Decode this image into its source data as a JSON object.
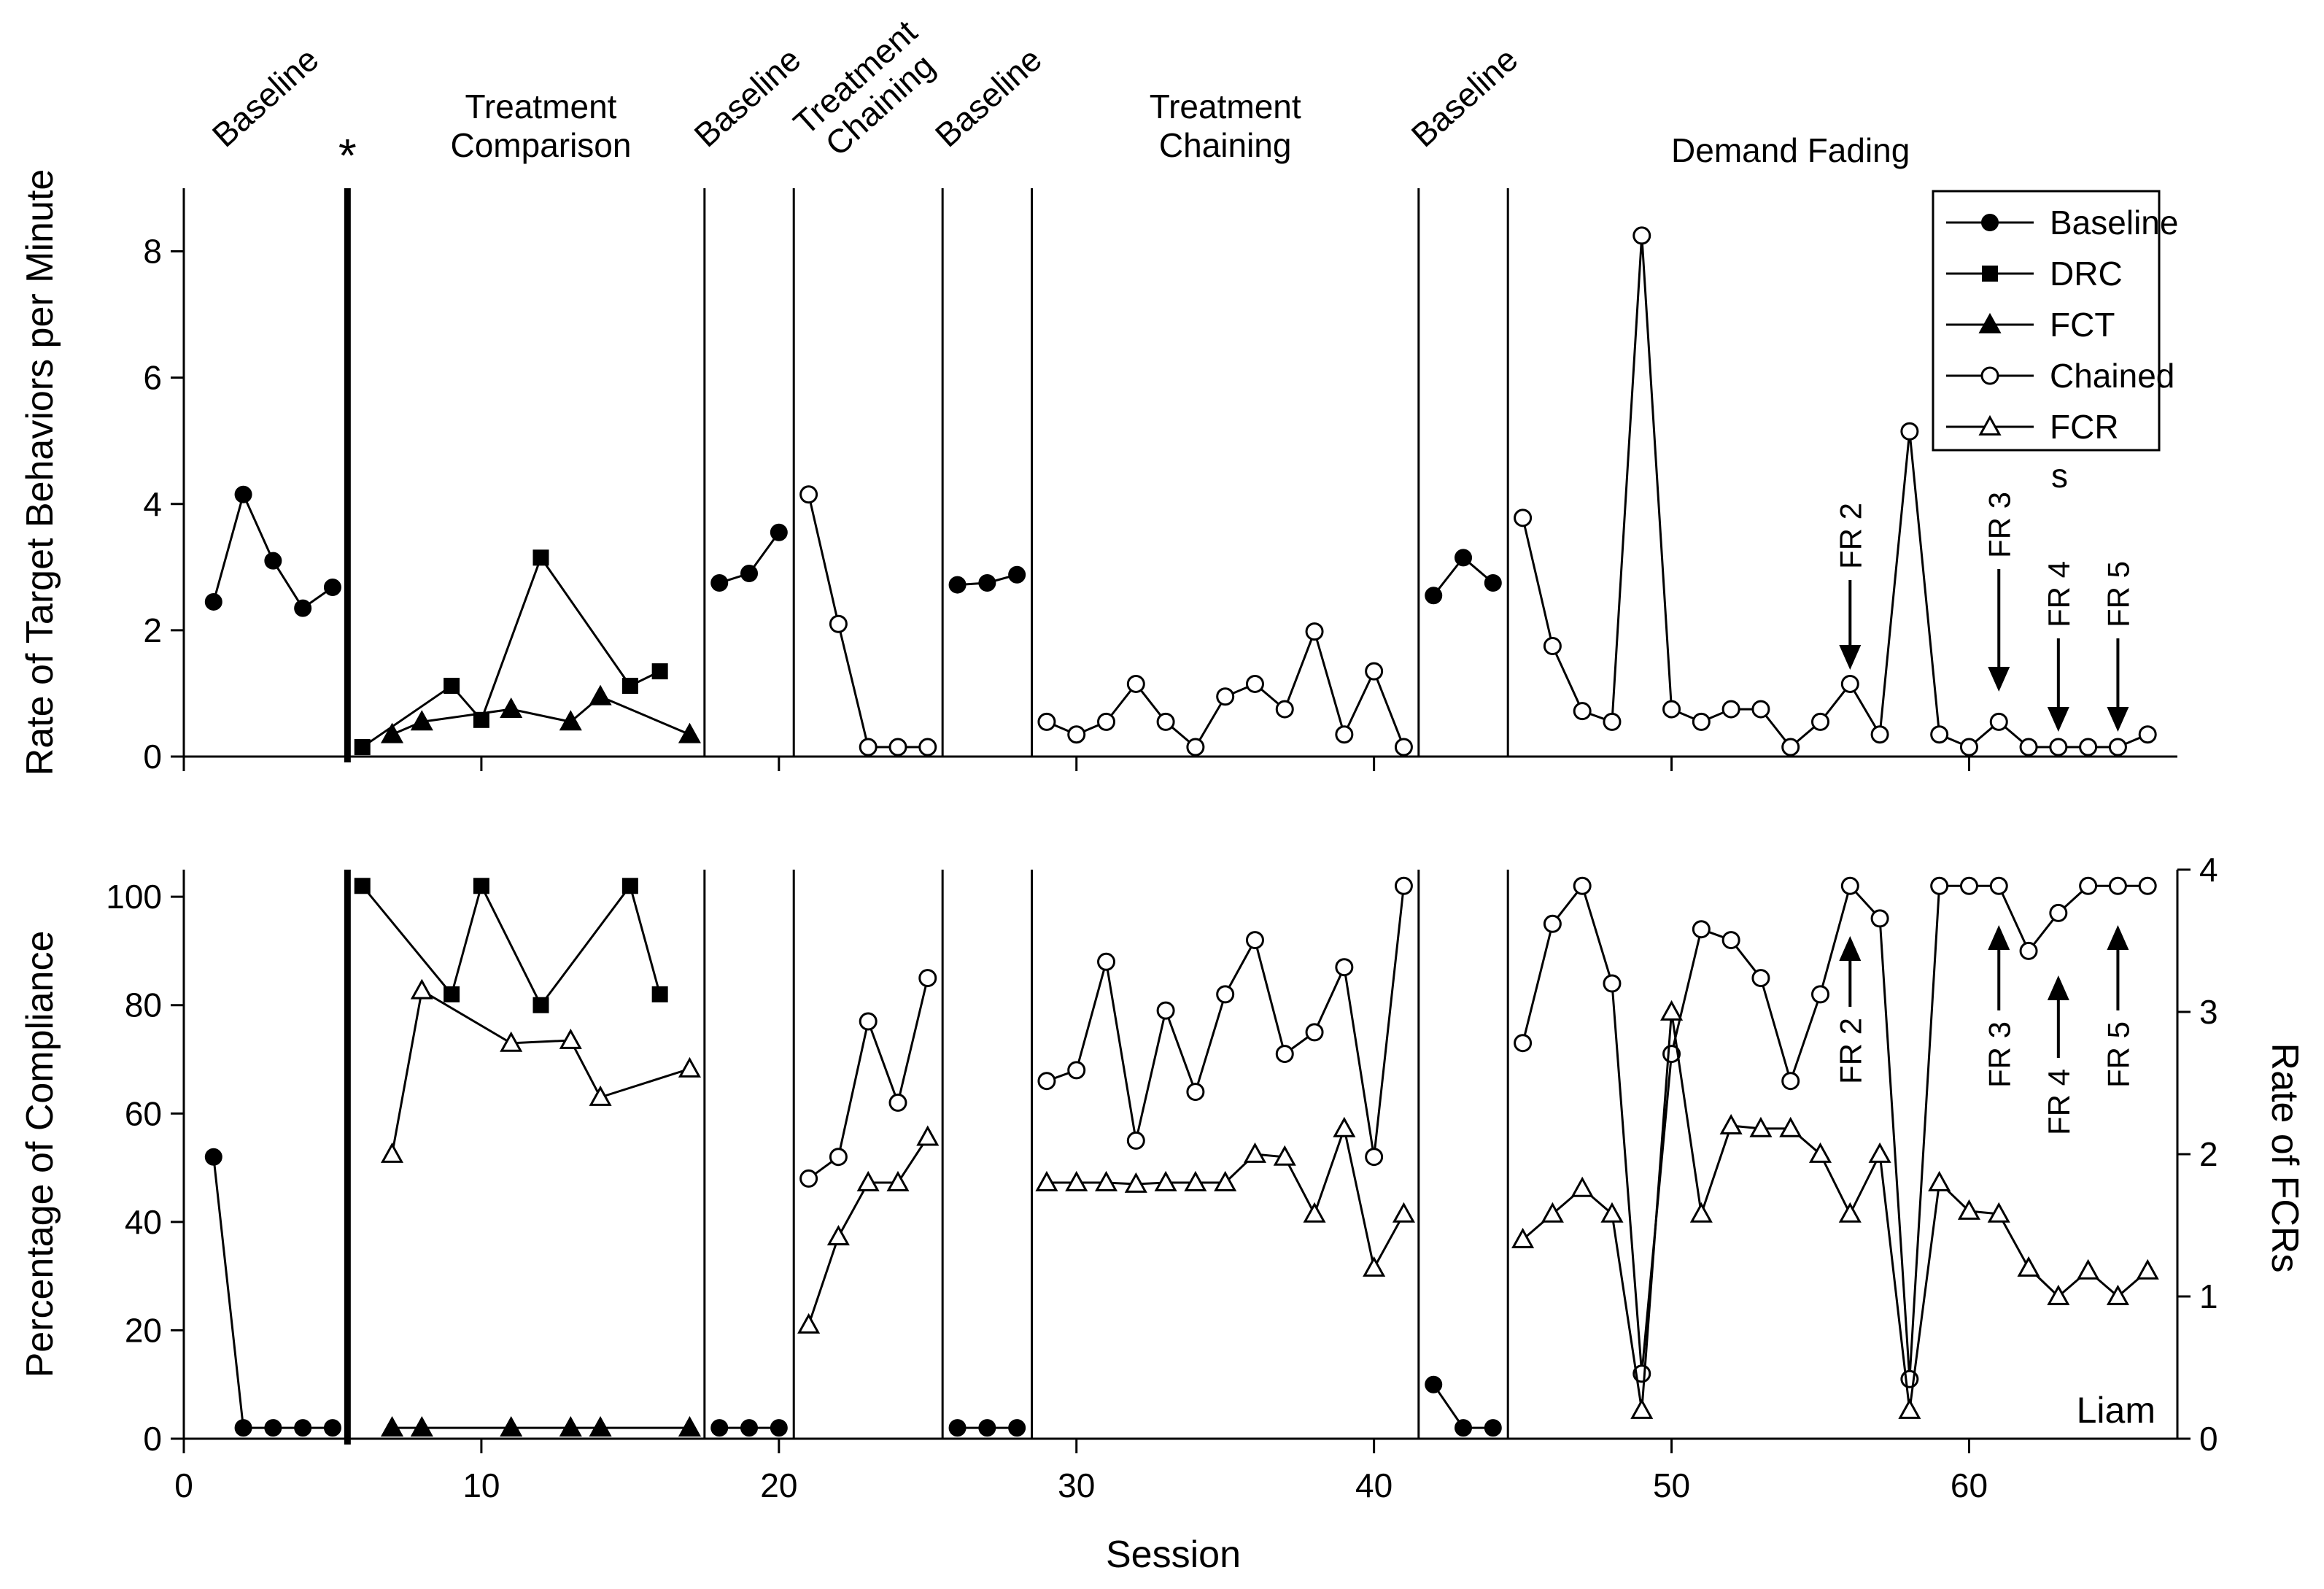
{
  "chart_data": [
    {
      "type": "line",
      "ylabel": "Rate of Target Behaviors per Minute",
      "xlim": [
        0,
        67
      ],
      "ylim": [
        0,
        9
      ],
      "yticks": [
        0,
        2,
        4,
        6,
        8
      ],
      "phase_changes": [
        5.5,
        17.5,
        20.5,
        25.5,
        28.5,
        41.5,
        44.5
      ],
      "phase_labels": [
        {
          "text": "Baseline",
          "x": 3,
          "rotated": true
        },
        {
          "text": "*",
          "x": 5.5,
          "rotated": false
        },
        {
          "text": "Treatment\nComparison",
          "x": 12,
          "rotated": false
        },
        {
          "text": "Baseline",
          "x": 19.2,
          "rotated": true
        },
        {
          "text": "Treatment\nChaining",
          "x": 23.2,
          "rotated": true
        },
        {
          "text": "Baseline",
          "x": 27.3,
          "rotated": true
        },
        {
          "text": "Treatment\nChaining",
          "x": 35,
          "rotated": false
        },
        {
          "text": "Baseline",
          "x": 43.3,
          "rotated": true
        },
        {
          "text": "Demand Fading",
          "x": 54,
          "rotated": false
        }
      ],
      "series": [
        {
          "name": "Baseline",
          "marker": "filled-circle",
          "segments": [
            [
              [
                1,
                2.45
              ],
              [
                2,
                4.15
              ],
              [
                3,
                3.1
              ],
              [
                4,
                2.35
              ],
              [
                5,
                2.68
              ]
            ],
            [
              [
                18,
                2.75
              ],
              [
                19,
                2.9
              ],
              [
                20,
                3.55
              ]
            ],
            [
              [
                26,
                2.72
              ],
              [
                27,
                2.75
              ],
              [
                28,
                2.88
              ]
            ],
            [
              [
                42,
                2.55
              ],
              [
                43,
                3.15
              ],
              [
                44,
                2.75
              ]
            ]
          ]
        },
        {
          "name": "DRC",
          "marker": "filled-square",
          "segments": [
            [
              [
                6,
                0.15
              ],
              [
                9,
                1.12
              ],
              [
                10,
                0.58
              ],
              [
                12,
                3.15
              ],
              [
                15,
                1.12
              ],
              [
                16,
                1.35
              ]
            ]
          ]
        },
        {
          "name": "FCT",
          "marker": "filled-triangle",
          "segments": [
            [
              [
                7,
                0.35
              ],
              [
                8,
                0.55
              ],
              [
                11,
                0.75
              ],
              [
                13,
                0.55
              ],
              [
                14,
                0.95
              ],
              [
                17,
                0.35
              ]
            ]
          ]
        },
        {
          "name": "Chained",
          "marker": "open-circle",
          "segments": [
            [
              [
                21,
                4.15
              ],
              [
                22,
                2.1
              ],
              [
                23,
                0.15
              ],
              [
                24,
                0.15
              ],
              [
                25,
                0.15
              ]
            ],
            [
              [
                29,
                0.55
              ],
              [
                30,
                0.35
              ],
              [
                31,
                0.55
              ],
              [
                32,
                1.15
              ],
              [
                33,
                0.55
              ],
              [
                34,
                0.15
              ],
              [
                35,
                0.95
              ],
              [
                36,
                1.15
              ],
              [
                37,
                0.75
              ],
              [
                38,
                1.98
              ],
              [
                39,
                0.35
              ],
              [
                40,
                1.35
              ],
              [
                41,
                0.15
              ]
            ],
            [
              [
                45,
                3.78
              ],
              [
                46,
                1.75
              ],
              [
                47,
                0.72
              ],
              [
                48,
                0.55
              ],
              [
                49,
                8.25
              ],
              [
                50,
                0.75
              ],
              [
                51,
                0.55
              ],
              [
                52,
                0.75
              ],
              [
                53,
                0.75
              ],
              [
                54,
                0.15
              ],
              [
                55,
                0.55
              ],
              [
                56,
                1.15
              ],
              [
                57,
                0.35
              ],
              [
                58,
                5.15
              ],
              [
                59,
                0.35
              ],
              [
                60,
                0.15
              ],
              [
                61,
                0.55
              ],
              [
                62,
                0.15
              ],
              [
                63,
                0.15
              ],
              [
                64,
                0.15
              ],
              [
                65,
                0.15
              ],
              [
                66,
                0.35
              ]
            ]
          ]
        }
      ],
      "legend": {
        "position": "top-right",
        "entries": [
          {
            "label": "Baseline",
            "marker": "filled-circle"
          },
          {
            "label": "DRC",
            "marker": "filled-square"
          },
          {
            "label": "FCT",
            "marker": "filled-triangle"
          },
          {
            "label": "Chained",
            "marker": "open-circle"
          },
          {
            "label": "FCR",
            "marker": "open-triangle"
          }
        ],
        "extra_text": "s"
      },
      "annotations": [
        {
          "text": "FR 2",
          "x": 56
        },
        {
          "text": "FR 3",
          "x": 61
        },
        {
          "text": "FR 4",
          "x": 63
        },
        {
          "text": "FR 5",
          "x": 65
        }
      ]
    },
    {
      "type": "line",
      "xlabel": "Session",
      "ylabel": "Percentage of Compliance",
      "ylabel_right": "Rate of FCRs",
      "xlim": [
        0,
        67
      ],
      "ylim": [
        0,
        105
      ],
      "ylim_right": [
        0,
        4
      ],
      "xticks": [
        0,
        10,
        20,
        30,
        40,
        50,
        60
      ],
      "yticks": [
        0,
        20,
        40,
        60,
        80,
        100
      ],
      "yticks_right": [
        0,
        1,
        2,
        3,
        4
      ],
      "phase_changes": [
        5.5,
        17.5,
        20.5,
        25.5,
        28.5,
        41.5,
        44.5
      ],
      "participant": "Liam",
      "series": [
        {
          "name": "Baseline",
          "axis": "left",
          "marker": "filled-circle",
          "segments": [
            [
              [
                1,
                52
              ],
              [
                2,
                2
              ],
              [
                3,
                2
              ],
              [
                4,
                2
              ],
              [
                5,
                2
              ]
            ],
            [
              [
                18,
                2
              ],
              [
                19,
                2
              ],
              [
                20,
                2
              ]
            ],
            [
              [
                26,
                2
              ],
              [
                27,
                2
              ],
              [
                28,
                2
              ]
            ],
            [
              [
                42,
                10
              ],
              [
                43,
                2
              ],
              [
                44,
                2
              ]
            ]
          ]
        },
        {
          "name": "DRC",
          "axis": "left",
          "marker": "filled-square",
          "segments": [
            [
              [
                6,
                102
              ],
              [
                9,
                82
              ],
              [
                10,
                102
              ],
              [
                12,
                80
              ],
              [
                15,
                102
              ],
              [
                16,
                82
              ]
            ]
          ]
        },
        {
          "name": "FCT",
          "axis": "left",
          "marker": "filled-triangle",
          "segments": [
            [
              [
                7,
                2
              ],
              [
                8,
                2
              ],
              [
                11,
                2
              ],
              [
                13,
                2
              ],
              [
                14,
                2
              ],
              [
                17,
                2
              ]
            ]
          ]
        },
        {
          "name": "Chained",
          "axis": "left",
          "marker": "open-circle",
          "segments": [
            [
              [
                21,
                48
              ],
              [
                22,
                52
              ],
              [
                23,
                77
              ],
              [
                24,
                62
              ],
              [
                25,
                85
              ]
            ],
            [
              [
                29,
                66
              ],
              [
                30,
                68
              ],
              [
                31,
                88
              ],
              [
                32,
                55
              ],
              [
                33,
                79
              ],
              [
                34,
                64
              ],
              [
                35,
                82
              ],
              [
                36,
                92
              ],
              [
                37,
                71
              ],
              [
                38,
                75
              ],
              [
                39,
                87
              ],
              [
                40,
                52
              ],
              [
                41,
                102
              ]
            ],
            [
              [
                45,
                73
              ],
              [
                46,
                95
              ],
              [
                47,
                102
              ],
              [
                48,
                84
              ],
              [
                49,
                12
              ],
              [
                50,
                71
              ],
              [
                51,
                94
              ],
              [
                52,
                92
              ],
              [
                53,
                85
              ],
              [
                54,
                66
              ],
              [
                55,
                82
              ],
              [
                56,
                102
              ],
              [
                57,
                96
              ],
              [
                58,
                11
              ],
              [
                59,
                102
              ],
              [
                60,
                102
              ],
              [
                61,
                102
              ],
              [
                62,
                90
              ],
              [
                63,
                97
              ],
              [
                64,
                102
              ],
              [
                65,
                102
              ],
              [
                66,
                102
              ]
            ]
          ]
        },
        {
          "name": "FCR",
          "axis": "right",
          "marker": "open-triangle",
          "segments": [
            [
              [
                7,
                2.0
              ],
              [
                8,
                3.15
              ],
              [
                11,
                2.78
              ],
              [
                13,
                2.8
              ],
              [
                14,
                2.4
              ],
              [
                17,
                2.6
              ]
            ],
            [
              [
                21,
                0.8
              ],
              [
                22,
                1.42
              ],
              [
                23,
                1.8
              ],
              [
                24,
                1.8
              ],
              [
                25,
                2.12
              ]
            ],
            [
              [
                29,
                1.8
              ],
              [
                30,
                1.8
              ],
              [
                31,
                1.8
              ],
              [
                32,
                1.79
              ],
              [
                33,
                1.8
              ],
              [
                34,
                1.8
              ],
              [
                35,
                1.8
              ],
              [
                36,
                2.0
              ],
              [
                37,
                1.98
              ],
              [
                38,
                1.58
              ],
              [
                39,
                2.18
              ],
              [
                40,
                1.2
              ],
              [
                41,
                1.58
              ]
            ],
            [
              [
                45,
                1.4
              ],
              [
                46,
                1.58
              ],
              [
                47,
                1.76
              ],
              [
                48,
                1.58
              ],
              [
                49,
                0.2
              ],
              [
                50,
                3.0
              ],
              [
                51,
                1.58
              ],
              [
                52,
                2.2
              ],
              [
                53,
                2.18
              ],
              [
                54,
                2.18
              ],
              [
                55,
                2.0
              ],
              [
                56,
                1.58
              ],
              [
                57,
                2.0
              ],
              [
                58,
                0.2
              ],
              [
                59,
                1.8
              ],
              [
                60,
                1.6
              ],
              [
                61,
                1.58
              ],
              [
                62,
                1.2
              ],
              [
                63,
                1.0
              ],
              [
                64,
                1.18
              ],
              [
                65,
                1.0
              ],
              [
                66,
                1.18
              ]
            ]
          ]
        }
      ],
      "annotations": [
        {
          "text": "FR 2",
          "x": 56
        },
        {
          "text": "FR 3",
          "x": 61
        },
        {
          "text": "FR 4",
          "x": 63
        },
        {
          "text": "FR 5",
          "x": 65
        }
      ]
    }
  ]
}
